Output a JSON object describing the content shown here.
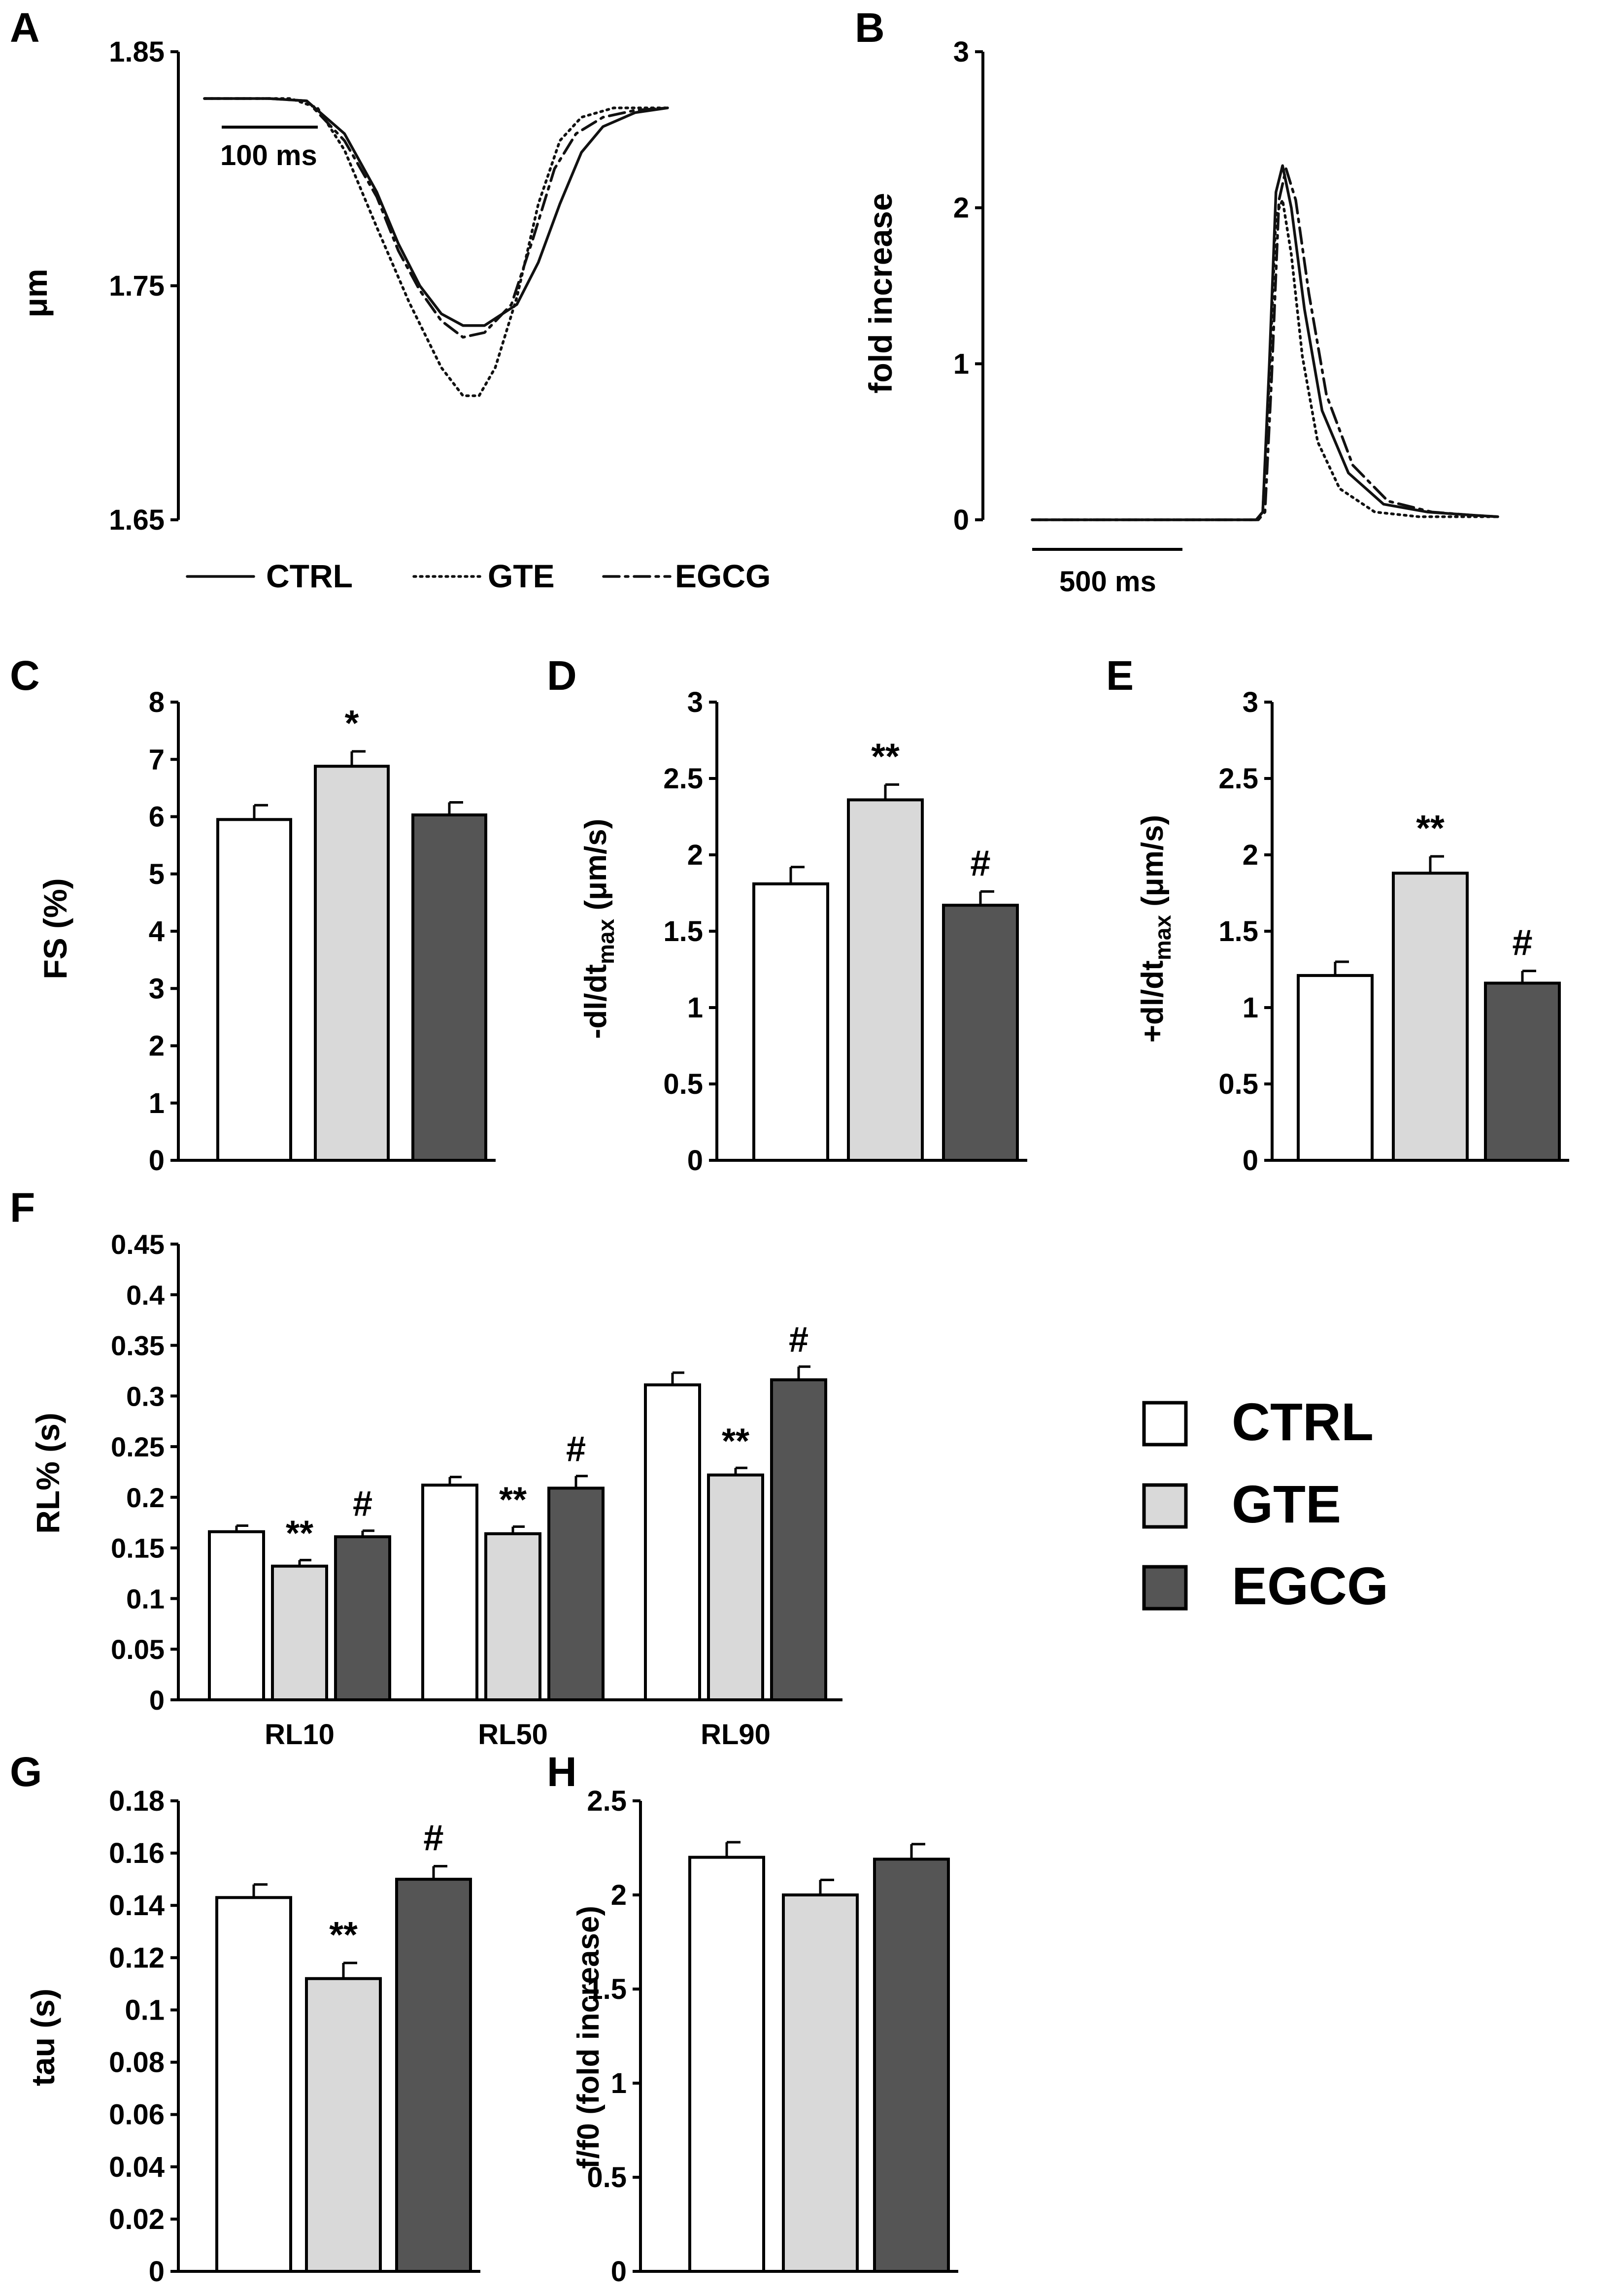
{
  "colors": {
    "CTRL": "#ffffff",
    "GTE": "#d9d9d9",
    "EGCG": "#555555",
    "axis": "#000000"
  },
  "legend_main": [
    "CTRL",
    "GTE",
    "EGCG"
  ],
  "chart_data": [
    {
      "panel": "A",
      "type": "line",
      "ylabel": "μm",
      "ylim": [
        1.65,
        1.85
      ],
      "yticks": [
        "1.85",
        "1.75",
        "1.65"
      ],
      "scalebar": "100 ms",
      "legend": [
        "CTRL",
        "GTE",
        "EGCG"
      ],
      "series": [
        {
          "name": "CTRL",
          "style": "solid",
          "x": [
            0,
            60,
            95,
            130,
            160,
            180,
            200,
            220,
            240,
            260,
            290,
            310,
            330,
            350,
            370,
            400,
            430
          ],
          "y": [
            1.83,
            1.83,
            1.829,
            1.815,
            1.79,
            1.768,
            1.75,
            1.738,
            1.733,
            1.733,
            1.742,
            1.76,
            1.785,
            1.807,
            1.818,
            1.824,
            1.826
          ]
        },
        {
          "name": "GTE",
          "style": "dotted",
          "x": [
            0,
            80,
            105,
            130,
            160,
            190,
            220,
            240,
            255,
            270,
            290,
            310,
            330,
            350,
            380,
            430
          ],
          "y": [
            1.83,
            1.83,
            1.826,
            1.808,
            1.775,
            1.743,
            1.715,
            1.703,
            1.703,
            1.715,
            1.745,
            1.785,
            1.812,
            1.822,
            1.826,
            1.826
          ]
        },
        {
          "name": "EGCG",
          "style": "dashdot",
          "x": [
            0,
            60,
            95,
            130,
            160,
            180,
            200,
            220,
            240,
            260,
            285,
            305,
            325,
            345,
            370,
            400,
            430
          ],
          "y": [
            1.83,
            1.83,
            1.829,
            1.812,
            1.788,
            1.765,
            1.748,
            1.735,
            1.728,
            1.73,
            1.742,
            1.77,
            1.8,
            1.815,
            1.822,
            1.825,
            1.826
          ]
        }
      ]
    },
    {
      "panel": "B",
      "type": "line",
      "ylabel": "fold increase",
      "ylim": [
        0,
        3
      ],
      "yticks": [
        "3",
        "2",
        "1",
        "0"
      ],
      "scalebar": "500 ms",
      "series": [
        {
          "name": "CTRL",
          "style": "solid",
          "x": [
            0,
            510,
            525,
            540,
            555,
            570,
            590,
            620,
            660,
            720,
            800,
            900,
            1000,
            1060
          ],
          "y": [
            0,
            0,
            0.05,
            1.0,
            2.1,
            2.27,
            2.0,
            1.35,
            0.7,
            0.3,
            0.1,
            0.05,
            0.03,
            0.02
          ]
        },
        {
          "name": "GTE",
          "style": "dotted",
          "x": [
            0,
            510,
            525,
            540,
            555,
            570,
            590,
            615,
            650,
            700,
            780,
            880,
            1000,
            1060
          ],
          "y": [
            0,
            0,
            0.05,
            0.9,
            1.95,
            2.05,
            1.7,
            1.05,
            0.5,
            0.2,
            0.05,
            0.02,
            0.02,
            0.02
          ]
        },
        {
          "name": "EGCG",
          "style": "dashdot",
          "x": [
            0,
            515,
            530,
            545,
            562,
            578,
            600,
            630,
            670,
            730,
            810,
            910,
            1000,
            1060
          ],
          "y": [
            0,
            0,
            0.05,
            0.9,
            2.05,
            2.25,
            2.05,
            1.45,
            0.8,
            0.35,
            0.12,
            0.05,
            0.03,
            0.02
          ]
        }
      ]
    },
    {
      "panel": "C",
      "type": "bar",
      "ylabel": "FS (%)",
      "ylim": [
        0,
        8
      ],
      "yticks": [
        "0",
        "1",
        "2",
        "3",
        "4",
        "5",
        "6",
        "7",
        "8"
      ],
      "categories": [
        "CTRL",
        "GTE",
        "EGCG"
      ],
      "values": [
        5.95,
        6.88,
        6.03
      ],
      "errors": [
        0.25,
        0.26,
        0.22
      ],
      "annotations": [
        "",
        "*",
        ""
      ]
    },
    {
      "panel": "D",
      "type": "bar",
      "ylabel": "-dl/dt",
      "ylabel_sub": "max",
      "ylabel_units": " (μm/s)",
      "ylim": [
        0,
        3
      ],
      "yticks": [
        "0",
        "0.5",
        "1",
        "1.5",
        "2",
        "2.5",
        "3"
      ],
      "categories": [
        "CTRL",
        "GTE",
        "EGCG"
      ],
      "values": [
        1.81,
        2.36,
        1.67
      ],
      "errors": [
        0.11,
        0.1,
        0.09
      ],
      "annotations": [
        "",
        "**",
        "#"
      ]
    },
    {
      "panel": "E",
      "type": "bar",
      "ylabel": "+dl/dt",
      "ylabel_sub": "max",
      "ylabel_units": " (μm/s)",
      "ylim": [
        0,
        3
      ],
      "yticks": [
        "0",
        "0.5",
        "1",
        "1.5",
        "2",
        "2.5",
        "3"
      ],
      "categories": [
        "CTRL",
        "GTE",
        "EGCG"
      ],
      "values": [
        1.21,
        1.88,
        1.16
      ],
      "errors": [
        0.09,
        0.11,
        0.08
      ],
      "annotations": [
        "",
        "**",
        "#"
      ]
    },
    {
      "panel": "F",
      "type": "bar",
      "ylabel": "RL% (s)",
      "ylim": [
        0,
        0.45
      ],
      "yticks": [
        "0",
        "0.05",
        "0.1",
        "0.15",
        "0.2",
        "0.25",
        "0.3",
        "0.35",
        "0.4",
        "0.45"
      ],
      "categories": [
        "RL10",
        "RL50",
        "RL90"
      ],
      "series": [
        {
          "name": "CTRL",
          "values": [
            0.166,
            0.212,
            0.311
          ],
          "errors": [
            0.006,
            0.008,
            0.012
          ],
          "annotations": [
            "",
            "",
            ""
          ]
        },
        {
          "name": "GTE",
          "values": [
            0.132,
            0.164,
            0.222
          ],
          "errors": [
            0.006,
            0.007,
            0.007
          ],
          "annotations": [
            "**",
            "**",
            "**"
          ]
        },
        {
          "name": "EGCG",
          "values": [
            0.161,
            0.209,
            0.316
          ],
          "errors": [
            0.006,
            0.012,
            0.013
          ],
          "annotations": [
            "#",
            "#",
            "#"
          ]
        }
      ]
    },
    {
      "panel": "G",
      "type": "bar",
      "ylabel": "tau (s)",
      "ylim": [
        0,
        0.18
      ],
      "yticks": [
        "0",
        "0.02",
        "0.04",
        "0.06",
        "0.08",
        "0.1",
        "0.12",
        "0.14",
        "0.16",
        "0.18"
      ],
      "categories": [
        "CTRL",
        "GTE",
        "EGCG"
      ],
      "values": [
        0.143,
        0.112,
        0.15
      ],
      "errors": [
        0.005,
        0.006,
        0.005
      ],
      "annotations": [
        "",
        "**",
        "#"
      ]
    },
    {
      "panel": "H",
      "type": "bar",
      "ylabel": "f/f0 (fold increase)",
      "ylim": [
        0,
        2.5
      ],
      "yticks": [
        "0",
        "0.5",
        "1",
        "1.5",
        "2",
        "2.5"
      ],
      "categories": [
        "CTRL",
        "GTE",
        "EGCG"
      ],
      "values": [
        2.2,
        2.0,
        2.19
      ],
      "errors": [
        0.08,
        0.08,
        0.08
      ],
      "annotations": [
        "",
        "",
        ""
      ]
    }
  ]
}
